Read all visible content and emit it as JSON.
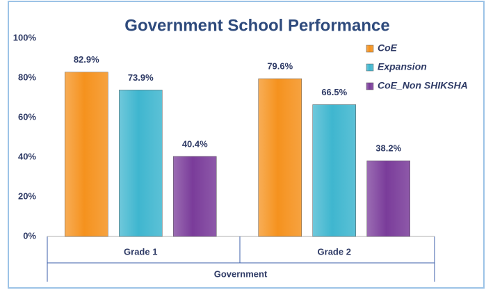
{
  "chart_data": {
    "type": "bar",
    "title": "Government School Performance",
    "categories": [
      "Grade 1",
      "Grade 2"
    ],
    "category_group": "Government",
    "series": [
      {
        "name": "CoE",
        "color": "#f5921e",
        "values": [
          82.9,
          79.6
        ],
        "value_labels": [
          "82.9%",
          "79.6%"
        ]
      },
      {
        "name": "Expansion",
        "color": "#3fb6cf",
        "values": [
          73.9,
          66.5
        ],
        "value_labels": [
          "73.9%",
          "66.5%"
        ]
      },
      {
        "name": "CoE_Non SHIKSHA",
        "color": "#7a3c9a",
        "values": [
          40.4,
          38.2
        ],
        "value_labels": [
          "40.4%",
          "38.2%"
        ]
      }
    ],
    "ylim": [
      0,
      100
    ],
    "yticks": [
      {
        "value": 0,
        "label": "0%"
      },
      {
        "value": 20,
        "label": "20%"
      },
      {
        "value": 40,
        "label": "40%"
      },
      {
        "value": 60,
        "label": "60%"
      },
      {
        "value": 80,
        "label": "80%"
      },
      {
        "value": 100,
        "label": "100%"
      }
    ],
    "legend": "right"
  }
}
